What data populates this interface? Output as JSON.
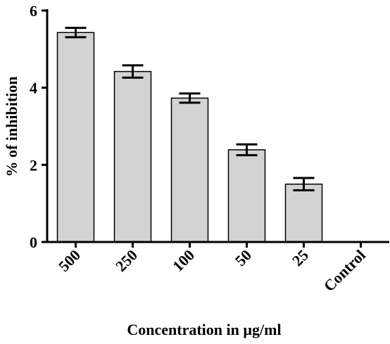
{
  "chart_data": {
    "type": "bar",
    "title": "",
    "xlabel": "Concentration in µg/ml",
    "ylabel": "% of inhibition",
    "categories": [
      "500",
      "250",
      "100",
      "50",
      "25",
      "Control"
    ],
    "values": [
      5.43,
      4.42,
      3.73,
      2.39,
      1.5,
      0
    ],
    "errors": [
      0.12,
      0.16,
      0.12,
      0.14,
      0.16,
      0
    ],
    "ylim": [
      0,
      6
    ],
    "yticks": [
      "0",
      "2",
      "4",
      "6"
    ],
    "grid": false,
    "legend": "none",
    "colors": {
      "bar_fill": "#d3d3d3",
      "bar_stroke": "#000000",
      "axis": "#000000"
    }
  }
}
